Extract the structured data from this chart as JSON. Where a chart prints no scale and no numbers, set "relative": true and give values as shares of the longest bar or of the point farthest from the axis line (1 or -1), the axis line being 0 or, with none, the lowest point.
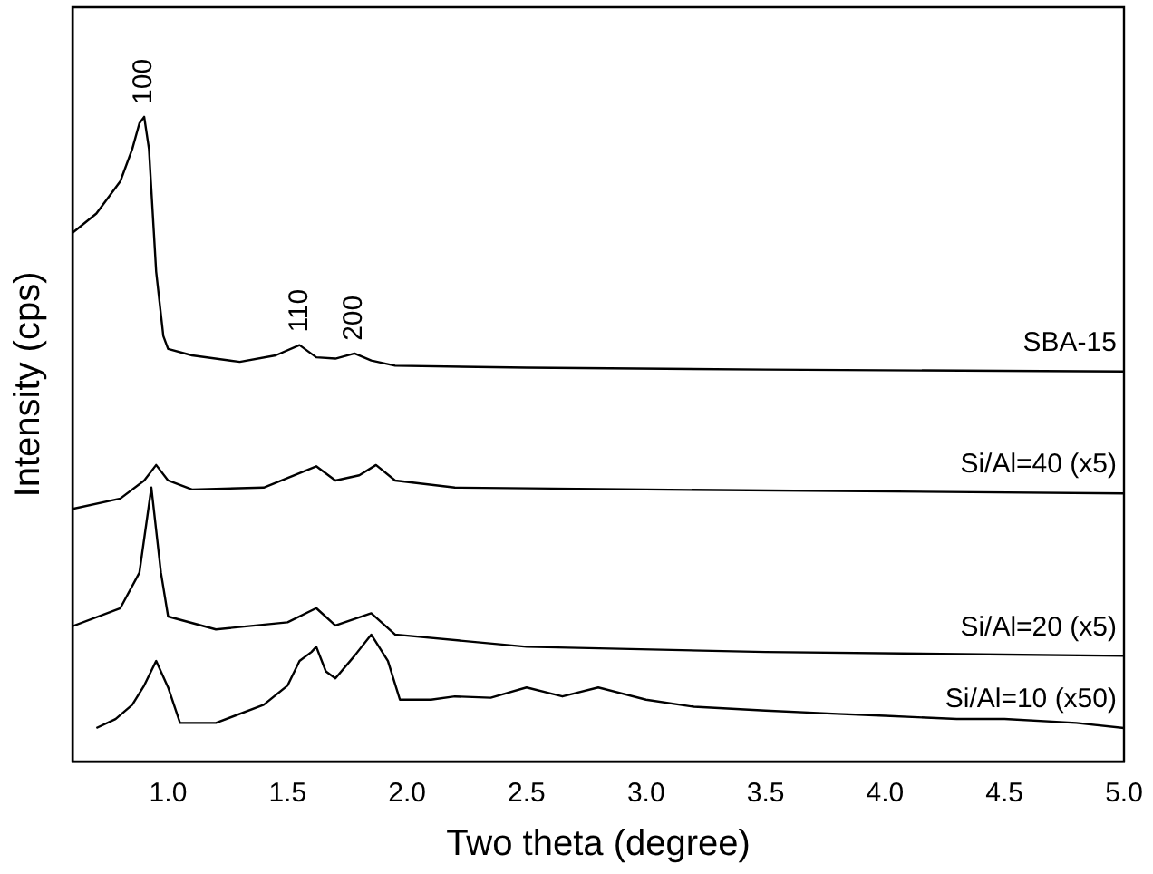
{
  "chart_data": {
    "type": "line",
    "xlabel": "Two theta (degree)",
    "ylabel": "Intensity (cps)",
    "relative": true,
    "grid": false,
    "legend": false,
    "marker": "none",
    "line_style": "solid",
    "xlim": [
      0.6,
      5.0
    ],
    "xticks": [
      {
        "value": 1,
        "label": "1.0"
      },
      {
        "value": 1.5,
        "label": "1.5"
      },
      {
        "value": 2,
        "label": "2.0"
      },
      {
        "value": 2.5,
        "label": "2.5"
      },
      {
        "value": 3,
        "label": "3.0"
      },
      {
        "value": 3.5,
        "label": "3.5"
      },
      {
        "value": 4,
        "label": "4.0"
      },
      {
        "value": 4.5,
        "label": "4.5"
      },
      {
        "value": 5,
        "label": "5.0"
      }
    ],
    "annotations": [
      {
        "text": "100",
        "x": 0.9,
        "y": 1
      },
      {
        "text": "110",
        "x": 1.55,
        "y": 0.646
      },
      {
        "text": "200",
        "x": 1.78,
        "y": 0.633
      }
    ],
    "series": [
      {
        "name": "SBA-15",
        "color": "#000000",
        "x": [
          0.6,
          0.7,
          0.8,
          0.85,
          0.88,
          0.9,
          0.92,
          0.95,
          0.98,
          1.0,
          1.1,
          1.3,
          1.45,
          1.55,
          1.62,
          1.7,
          1.78,
          1.85,
          1.95,
          2.5,
          3.5,
          5.0
        ],
        "values": [
          0.82,
          0.85,
          0.9,
          0.95,
          0.99,
          1,
          0.95,
          0.76,
          0.66,
          0.64,
          0.63,
          0.62,
          0.63,
          0.646,
          0.627,
          0.625,
          0.633,
          0.622,
          0.614,
          0.611,
          0.608,
          0.605
        ]
      },
      {
        "name": "Si/Al=40 (x5)",
        "color": "#000000",
        "x": [
          0.6,
          0.8,
          0.9,
          0.95,
          1.0,
          1.1,
          1.4,
          1.62,
          1.7,
          1.8,
          1.87,
          1.95,
          2.2,
          3.0,
          5.0
        ],
        "values": [
          0.392,
          0.408,
          0.436,
          0.46,
          0.436,
          0.422,
          0.425,
          0.458,
          0.436,
          0.444,
          0.46,
          0.436,
          0.425,
          0.422,
          0.416
        ]
      },
      {
        "name": "Si/Al=20 (x5)",
        "color": "#000000",
        "x": [
          0.6,
          0.8,
          0.88,
          0.93,
          0.97,
          1.0,
          1.2,
          1.5,
          1.62,
          1.7,
          1.85,
          1.95,
          2.5,
          3.5,
          5.0
        ],
        "values": [
          0.21,
          0.238,
          0.293,
          0.425,
          0.293,
          0.225,
          0.205,
          0.216,
          0.238,
          0.211,
          0.23,
          0.197,
          0.178,
          0.17,
          0.164
        ]
      },
      {
        "name": "Si/Al=10 (x50)",
        "color": "#000000",
        "x": [
          0.7,
          0.78,
          0.85,
          0.9,
          0.95,
          1.0,
          1.05,
          1.2,
          1.4,
          1.5,
          1.55,
          1.6,
          1.62,
          1.66,
          1.7,
          1.78,
          1.85,
          1.92,
          1.97,
          2.1,
          2.2,
          2.35,
          2.5,
          2.65,
          2.8,
          3.0,
          3.2,
          3.5,
          3.8,
          4.0,
          4.3,
          4.5,
          4.8,
          5.0
        ],
        "values": [
          0.052,
          0.066,
          0.088,
          0.118,
          0.156,
          0.115,
          0.06,
          0.06,
          0.088,
          0.118,
          0.156,
          0.17,
          0.178,
          0.14,
          0.129,
          0.164,
          0.197,
          0.156,
          0.096,
          0.096,
          0.101,
          0.099,
          0.115,
          0.101,
          0.115,
          0.096,
          0.085,
          0.079,
          0.074,
          0.071,
          0.066,
          0.066,
          0.06,
          0.052
        ]
      }
    ]
  }
}
